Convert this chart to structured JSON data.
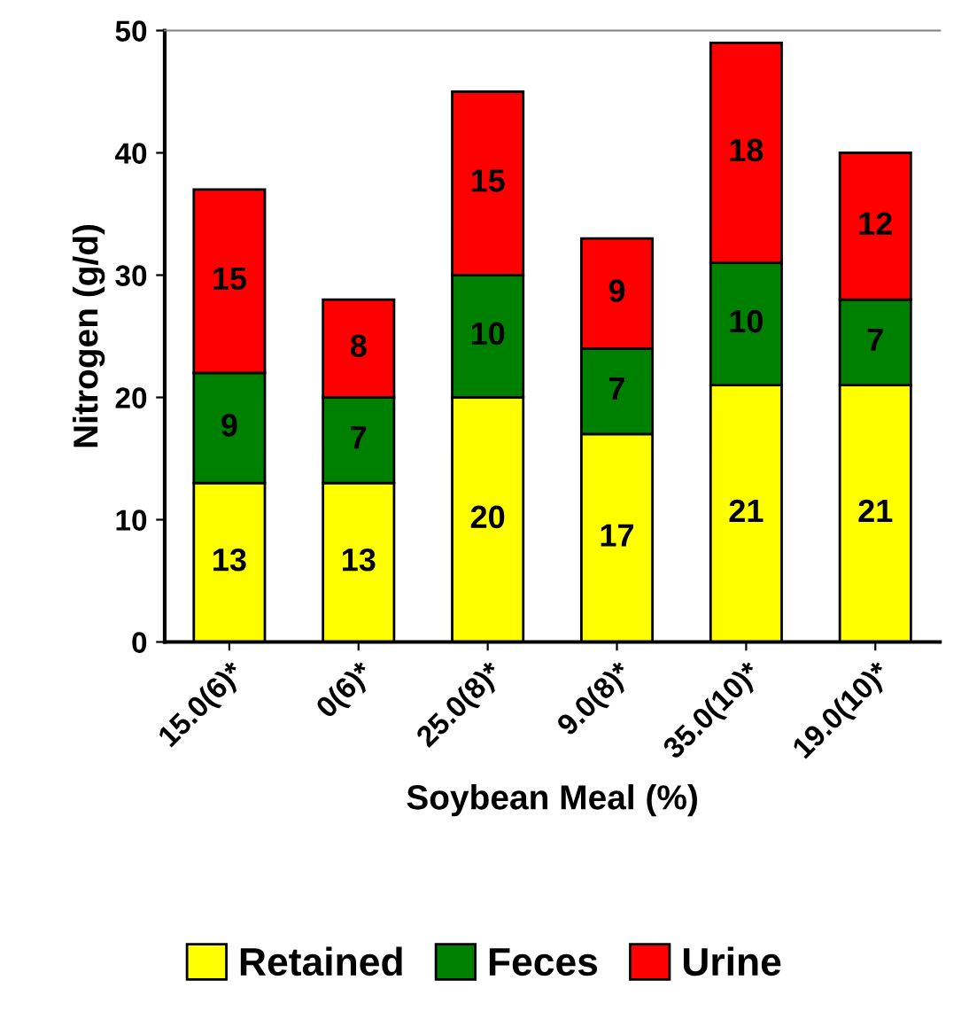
{
  "chart_data": {
    "type": "bar",
    "stacked": true,
    "xlabel": "Soybean Meal (%)",
    "ylabel": "Nitrogen (g/d)",
    "categories": [
      "15.0(6)*",
      "0(6)*",
      "25.0(8)*",
      "9.0(8)*",
      "35.0(10)*",
      "19.0(10)*"
    ],
    "series": [
      {
        "name": "Retained",
        "color": "#ffff00",
        "values": [
          13,
          13,
          20,
          17,
          21,
          21
        ]
      },
      {
        "name": "Feces",
        "color": "#008000",
        "values": [
          9,
          7,
          10,
          7,
          10,
          7
        ]
      },
      {
        "name": "Urine",
        "color": "#ff0000",
        "values": [
          15,
          8,
          15,
          9,
          18,
          12
        ]
      }
    ],
    "ylim": [
      0,
      50
    ],
    "yticks": [
      0,
      10,
      20,
      30,
      40,
      50
    ],
    "data_labels": true,
    "legend": "bottom",
    "grid": false
  }
}
